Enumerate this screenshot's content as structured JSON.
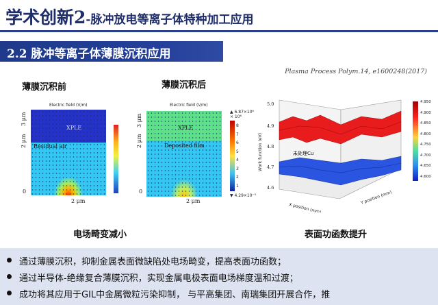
{
  "title": {
    "main": "学术创新2",
    "rest": "-脉冲放电等离子体特种加工应用"
  },
  "section": {
    "label": "2.2  脉冲等离子体薄膜沉积应用"
  },
  "citation": "Plasma Process Polym.14, e1600248(2017)",
  "panel_before": {
    "label": "薄膜沉积前",
    "field_title": "Electric field (V/m)",
    "top_region": "XPLE",
    "bottom_region": "Residual air",
    "y_ticks": [
      "3 μm",
      "2 μm",
      "0"
    ],
    "x_tick": "2 μm"
  },
  "panel_after": {
    "label": "薄膜沉积后",
    "field_title": "Electric field (V/m)",
    "top_region": "XPLE",
    "bottom_region": "Deposited film",
    "y_ticks": [
      "3 μm",
      "2 μm",
      "0"
    ],
    "x_tick": "2 μm",
    "colorbar_max": "▲ 6.87×10⁶",
    "colorbar_exp": "× 10⁶",
    "colorbar_ticks": [
      "8",
      "7",
      "6",
      "5",
      "4",
      "3",
      "2",
      "1"
    ],
    "colorbar_min": "▼ 4.29×10⁻⁵"
  },
  "plot3d": {
    "z_label": "Work function (eV)",
    "z_ticks": [
      "5.0",
      "4.9",
      "4.8",
      "4.7",
      "4.6"
    ],
    "x_label": "X position (mm)",
    "y_label": "Y position (mm)",
    "surface_label": "未处理Cu",
    "colorbar_ticks": [
      "4.950",
      "4.900",
      "4.850",
      "4.800",
      "4.750",
      "4.700",
      "4.650",
      "4.600"
    ]
  },
  "captions": {
    "left": "电场畸变减小",
    "right": "表面功函数提升"
  },
  "bullets": [
    "通过薄膜沉积，抑制金属表面微缺陷处电场畸变，提高表面功函数；",
    "通过半导体-绝缘复合薄膜沉积，实现金属电极表面电场梯度温和过渡；",
    "成功将其应用于GIL中金属微粒污染抑制， 与平高集团、南瑞集团开展合作，推"
  ]
}
